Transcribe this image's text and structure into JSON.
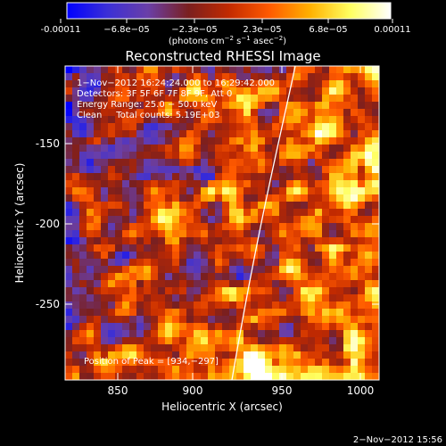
{
  "colorbar": {
    "tick_labels": [
      "-0.00011",
      "−6.8e−05",
      "−2.3e−05",
      "2.3e−05",
      "6.8e−05",
      "0.00011"
    ],
    "unit_prefix": "(photons cm",
    "unit_exp1": "−2",
    "unit_mid": " s",
    "unit_exp2": "−1",
    "unit_mid2": " asec",
    "unit_exp3": "−2",
    "unit_suffix": ")",
    "colormap": [
      "#0000ff",
      "#3b2fd6",
      "#6a3fa8",
      "#7a1f1f",
      "#c22a00",
      "#ff5a00",
      "#ffb000",
      "#ffff60",
      "#ffffff"
    ]
  },
  "title": "Reconstructed RHESSI Image",
  "annotations": [
    "1−Nov−2012 16:24:24.000 to 16:29:42.000",
    "Detectors: 3F 5F 6F 7F 8F 9F, Att 0",
    "Energy Range: 25.0 − 50.0 keV",
    "Clean     Total counts: 5.19E+03"
  ],
  "peak_label": "Position of Peak = [934,−297]",
  "x_axis": {
    "label": "Heliocentric X (arcsec)",
    "range": [
      820,
      1030
    ],
    "ticks": [
      850,
      900,
      950,
      1000
    ]
  },
  "y_axis": {
    "label": "Heliocentric Y (arcsec)",
    "range": [
      -300,
      -110
    ],
    "ticks": [
      -150,
      -200,
      -250
    ]
  },
  "footer_date": "2−Nov−2012 15:56"
}
